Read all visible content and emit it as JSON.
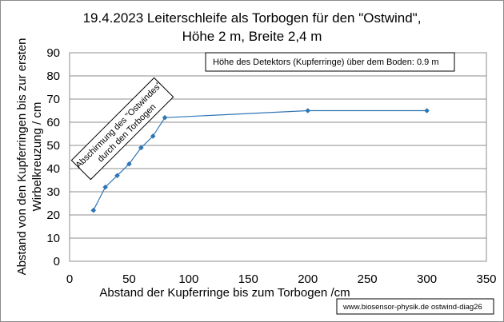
{
  "chart_data": {
    "type": "line",
    "title_lines": [
      "19.4.2023 Leiterschleife als Torbogen für den \"Ostwind\",",
      "Höhe 2 m, Breite 2,4 m"
    ],
    "xlabel": "Abstand der Kupferringe bis zum Torbogen /cm",
    "ylabel_lines": [
      "Abstand von den Kupferringen bis zur ersten",
      "Wirbelkreuzung  / cm"
    ],
    "xlim": [
      0,
      350
    ],
    "ylim": [
      0,
      90
    ],
    "x_ticks": [
      "0",
      "50",
      "100",
      "150",
      "200",
      "250",
      "300",
      "350"
    ],
    "y_ticks": [
      "0",
      "10",
      "20",
      "30",
      "40",
      "50",
      "60",
      "70",
      "80",
      "90"
    ],
    "grid": {
      "x": false,
      "y": true
    },
    "series": [
      {
        "x": [
          20,
          30,
          40,
          50,
          60,
          70,
          80,
          200,
          300
        ],
        "y": [
          22,
          32,
          37,
          42,
          49,
          54,
          62,
          65,
          65
        ],
        "color": "#2e75b6",
        "marker": "diamond"
      }
    ],
    "annotations": {
      "detector_note": "Höhe des Detektors (Kupferringe) über dem Boden: 0.9 m",
      "shielding_lines": [
        "Abschirmung des \"Ostwindes\"",
        "durch den Torbogen"
      ]
    }
  },
  "footer": {
    "source": "www.biosensor-physik.de  ostwind-diag26"
  }
}
